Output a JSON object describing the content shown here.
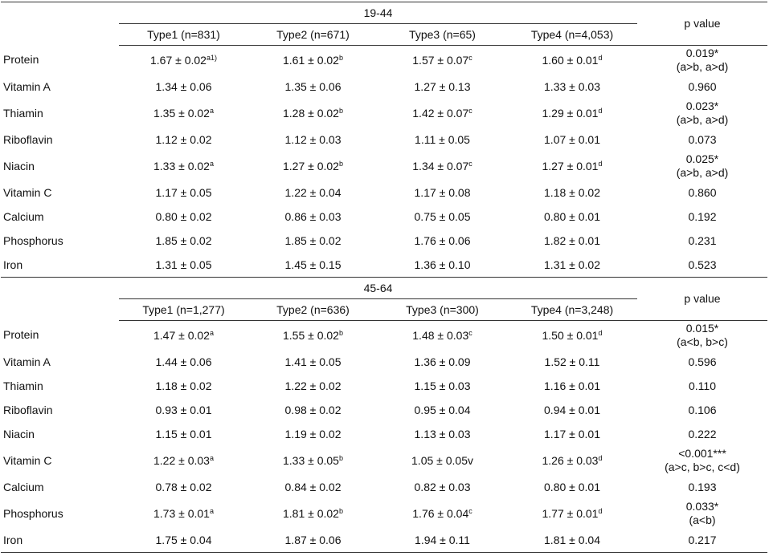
{
  "sections": [
    {
      "age_group": "19-44",
      "columns": [
        "Type1 (n=831)",
        "Type2 (n=671)",
        "Type3 (n=65)",
        "Type4 (n=4,053)"
      ],
      "p_header": "p value",
      "rows": [
        {
          "name": "Protein",
          "cells": [
            {
              "text": "1.67 ± 0.02",
              "sup": "a1)"
            },
            {
              "text": "1.61 ± 0.02",
              "sup": "b"
            },
            {
              "text": "1.57 ± 0.07",
              "sup": "c"
            },
            {
              "text": "1.60 ± 0.01",
              "sup": "d"
            }
          ],
          "p": {
            "value": "0.019*",
            "note": "(a>b, a>d)"
          }
        },
        {
          "name": "Vitamin A",
          "cells": [
            {
              "text": "1.34 ± 0.06"
            },
            {
              "text": "1.35 ± 0.06"
            },
            {
              "text": "1.27 ± 0.13"
            },
            {
              "text": "1.33 ± 0.03"
            }
          ],
          "p": {
            "value": "0.960"
          }
        },
        {
          "name": "Thiamin",
          "cells": [
            {
              "text": "1.35 ± 0.02",
              "sup": "a"
            },
            {
              "text": "1.28 ± 0.02",
              "sup": "b"
            },
            {
              "text": "1.42 ± 0.07",
              "sup": "c"
            },
            {
              "text": "1.29 ± 0.01",
              "sup": "d"
            }
          ],
          "p": {
            "value": "0.023*",
            "note": "(a>b, a>d)"
          }
        },
        {
          "name": "Riboflavin",
          "cells": [
            {
              "text": "1.12 ± 0.02"
            },
            {
              "text": "1.12 ± 0.03"
            },
            {
              "text": "1.11 ± 0.05"
            },
            {
              "text": "1.07 ± 0.01"
            }
          ],
          "p": {
            "value": "0.073"
          }
        },
        {
          "name": "Niacin",
          "cells": [
            {
              "text": "1.33 ± 0.02",
              "sup": "a"
            },
            {
              "text": "1.27 ± 0.02",
              "sup": "b"
            },
            {
              "text": "1.34 ± 0.07",
              "sup": "c"
            },
            {
              "text": "1.27 ± 0.01",
              "sup": "d"
            }
          ],
          "p": {
            "value": "0.025*",
            "note": "(a>b, a>d)"
          }
        },
        {
          "name": "Vitamin C",
          "cells": [
            {
              "text": "1.17 ± 0.05"
            },
            {
              "text": "1.22 ± 0.04"
            },
            {
              "text": "1.17 ± 0.08"
            },
            {
              "text": "1.18 ± 0.02"
            }
          ],
          "p": {
            "value": "0.860"
          }
        },
        {
          "name": "Calcium",
          "cells": [
            {
              "text": "0.80 ± 0.02"
            },
            {
              "text": "0.86 ± 0.03"
            },
            {
              "text": "0.75 ± 0.05"
            },
            {
              "text": "0.80 ± 0.01"
            }
          ],
          "p": {
            "value": "0.192"
          }
        },
        {
          "name": "Phosphorus",
          "cells": [
            {
              "text": "1.85 ± 0.02"
            },
            {
              "text": "1.85 ± 0.02"
            },
            {
              "text": "1.76 ± 0.06"
            },
            {
              "text": "1.82 ± 0.01"
            }
          ],
          "p": {
            "value": "0.231"
          }
        },
        {
          "name": "Iron",
          "cells": [
            {
              "text": "1.31 ± 0.05"
            },
            {
              "text": "1.45 ± 0.15"
            },
            {
              "text": "1.36 ± 0.10"
            },
            {
              "text": "1.31 ± 0.02"
            }
          ],
          "p": {
            "value": "0.523"
          }
        }
      ]
    },
    {
      "age_group": "45-64",
      "columns": [
        "Type1 (n=1,277)",
        "Type2 (n=636)",
        "Type3 (n=300)",
        "Type4 (n=3,248)"
      ],
      "p_header": "p value",
      "rows": [
        {
          "name": "Protein",
          "cells": [
            {
              "text": "1.47 ± 0.02",
              "sup": "a"
            },
            {
              "text": "1.55 ± 0.02",
              "sup": "b"
            },
            {
              "text": "1.48 ± 0.03",
              "sup": "c"
            },
            {
              "text": "1.50 ± 0.01",
              "sup": "d"
            }
          ],
          "p": {
            "value": "0.015*",
            "note": "(a<b, b>c)"
          }
        },
        {
          "name": "Vitamin A",
          "cells": [
            {
              "text": "1.44 ± 0.06"
            },
            {
              "text": "1.41 ± 0.05"
            },
            {
              "text": "1.36 ± 0.09"
            },
            {
              "text": "1.52 ± 0.11"
            }
          ],
          "p": {
            "value": "0.596"
          }
        },
        {
          "name": "Thiamin",
          "cells": [
            {
              "text": "1.18 ± 0.02"
            },
            {
              "text": "1.22 ± 0.02"
            },
            {
              "text": "1.15 ± 0.03"
            },
            {
              "text": "1.16 ± 0.01"
            }
          ],
          "p": {
            "value": "0.110"
          }
        },
        {
          "name": "Riboflavin",
          "cells": [
            {
              "text": "0.93 ± 0.01"
            },
            {
              "text": "0.98 ± 0.02"
            },
            {
              "text": "0.95 ± 0.04"
            },
            {
              "text": "0.94 ± 0.01"
            }
          ],
          "p": {
            "value": "0.106"
          }
        },
        {
          "name": "Niacin",
          "cells": [
            {
              "text": "1.15 ± 0.01"
            },
            {
              "text": "1.19 ± 0.02"
            },
            {
              "text": "1.13 ± 0.03"
            },
            {
              "text": "1.17 ± 0.01"
            }
          ],
          "p": {
            "value": "0.222"
          }
        },
        {
          "name": "Vitamin C",
          "cells": [
            {
              "text": "1.22 ± 0.03",
              "sup": "a"
            },
            {
              "text": "1.33 ± 0.05",
              "sup": "b"
            },
            {
              "text": "1.05 ± 0.05v"
            },
            {
              "text": "1.26 ± 0.03",
              "sup": "d"
            }
          ],
          "p": {
            "value": "<0.001***",
            "note": "(a>c, b>c, c<d)"
          }
        },
        {
          "name": "Calcium",
          "cells": [
            {
              "text": "0.78 ± 0.02"
            },
            {
              "text": "0.84 ± 0.02"
            },
            {
              "text": "0.82 ± 0.03"
            },
            {
              "text": "0.80 ± 0.01"
            }
          ],
          "p": {
            "value": "0.193"
          }
        },
        {
          "name": "Phosphorus",
          "cells": [
            {
              "text": "1.73 ± 0.01",
              "sup": "a"
            },
            {
              "text": "1.81 ± 0.02",
              "sup": "b"
            },
            {
              "text": "1.76 ± 0.04",
              "sup": "c"
            },
            {
              "text": "1.77 ± 0.01",
              "sup": "d"
            }
          ],
          "p": {
            "value": "0.033*",
            "note": "(a<b)"
          }
        },
        {
          "name": "Iron",
          "cells": [
            {
              "text": "1.75 ± 0.04"
            },
            {
              "text": "1.87 ± 0.06"
            },
            {
              "text": "1.94 ± 0.11"
            },
            {
              "text": "1.81 ± 0.04"
            }
          ],
          "p": {
            "value": "0.217"
          }
        }
      ]
    }
  ]
}
